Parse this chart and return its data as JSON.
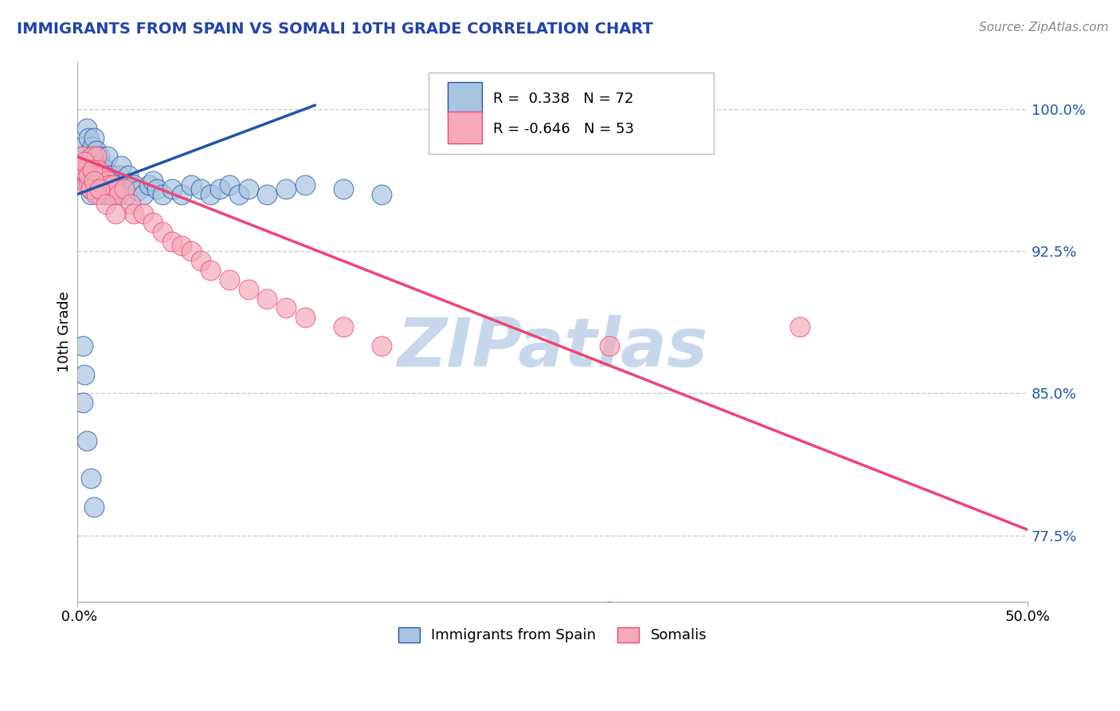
{
  "title": "IMMIGRANTS FROM SPAIN VS SOMALI 10TH GRADE CORRELATION CHART",
  "source": "Source: ZipAtlas.com",
  "ylabel": "10th Grade",
  "ytick_labels": [
    "77.5%",
    "85.0%",
    "92.5%",
    "100.0%"
  ],
  "ytick_values": [
    0.775,
    0.85,
    0.925,
    1.0
  ],
  "xmin": 0.0,
  "xmax": 0.5,
  "ymin": 0.74,
  "ymax": 1.025,
  "blue_R": 0.338,
  "blue_N": 72,
  "pink_R": -0.646,
  "pink_N": 53,
  "blue_scatter_color": "#A8C4E0",
  "pink_scatter_color": "#F4AABB",
  "blue_line_color": "#2255AA",
  "pink_line_color": "#EE4477",
  "watermark": "ZIPatlas",
  "watermark_color": "#C8D8EC",
  "legend_label_blue": "Immigrants from Spain",
  "legend_label_pink": "Somalis",
  "blue_line_x0": 0.0,
  "blue_line_y0": 0.955,
  "blue_line_x1": 0.125,
  "blue_line_y1": 1.002,
  "pink_line_x0": 0.0,
  "pink_line_y0": 0.975,
  "pink_line_x1": 0.5,
  "pink_line_y1": 0.778,
  "blue_x": [
    0.002,
    0.003,
    0.004,
    0.005,
    0.005,
    0.006,
    0.006,
    0.007,
    0.007,
    0.008,
    0.008,
    0.009,
    0.009,
    0.009,
    0.01,
    0.01,
    0.011,
    0.011,
    0.012,
    0.012,
    0.012,
    0.013,
    0.013,
    0.014,
    0.015,
    0.015,
    0.016,
    0.016,
    0.017,
    0.018,
    0.019,
    0.02,
    0.021,
    0.022,
    0.023,
    0.025,
    0.026,
    0.027,
    0.03,
    0.032,
    0.035,
    0.038,
    0.04,
    0.042,
    0.045,
    0.05,
    0.055,
    0.06,
    0.065,
    0.07,
    0.075,
    0.08,
    0.085,
    0.09,
    0.1,
    0.11,
    0.12,
    0.14,
    0.16,
    0.005,
    0.006,
    0.007,
    0.008,
    0.009,
    0.01,
    0.011,
    0.003,
    0.003,
    0.004,
    0.005,
    0.007,
    0.009
  ],
  "blue_y": [
    0.975,
    0.98,
    0.97,
    0.965,
    0.99,
    0.96,
    0.985,
    0.975,
    0.955,
    0.97,
    0.98,
    0.96,
    0.975,
    0.985,
    0.965,
    0.978,
    0.97,
    0.96,
    0.975,
    0.965,
    0.955,
    0.97,
    0.96,
    0.965,
    0.955,
    0.968,
    0.962,
    0.975,
    0.96,
    0.965,
    0.958,
    0.955,
    0.96,
    0.965,
    0.97,
    0.96,
    0.955,
    0.965,
    0.96,
    0.957,
    0.955,
    0.96,
    0.962,
    0.958,
    0.955,
    0.958,
    0.955,
    0.96,
    0.958,
    0.955,
    0.958,
    0.96,
    0.955,
    0.958,
    0.955,
    0.958,
    0.96,
    0.958,
    0.955,
    0.968,
    0.962,
    0.958,
    0.965,
    0.972,
    0.968,
    0.958,
    0.845,
    0.875,
    0.86,
    0.825,
    0.805,
    0.79
  ],
  "pink_x": [
    0.003,
    0.004,
    0.005,
    0.006,
    0.007,
    0.008,
    0.008,
    0.009,
    0.01,
    0.01,
    0.011,
    0.012,
    0.013,
    0.014,
    0.015,
    0.016,
    0.017,
    0.018,
    0.019,
    0.02,
    0.022,
    0.025,
    0.028,
    0.03,
    0.035,
    0.04,
    0.045,
    0.05,
    0.055,
    0.06,
    0.065,
    0.07,
    0.08,
    0.09,
    0.1,
    0.11,
    0.12,
    0.14,
    0.16,
    0.003,
    0.004,
    0.005,
    0.006,
    0.007,
    0.008,
    0.009,
    0.01,
    0.012,
    0.015,
    0.02,
    0.28,
    0.38,
    0.28
  ],
  "pink_y": [
    0.975,
    0.97,
    0.965,
    0.97,
    0.96,
    0.975,
    0.965,
    0.97,
    0.965,
    0.975,
    0.968,
    0.965,
    0.96,
    0.965,
    0.958,
    0.962,
    0.96,
    0.955,
    0.96,
    0.958,
    0.955,
    0.958,
    0.95,
    0.945,
    0.945,
    0.94,
    0.935,
    0.93,
    0.928,
    0.925,
    0.92,
    0.915,
    0.91,
    0.905,
    0.9,
    0.895,
    0.89,
    0.885,
    0.875,
    0.968,
    0.972,
    0.96,
    0.965,
    0.958,
    0.968,
    0.962,
    0.955,
    0.958,
    0.95,
    0.945,
    0.875,
    0.885,
    0.735
  ]
}
